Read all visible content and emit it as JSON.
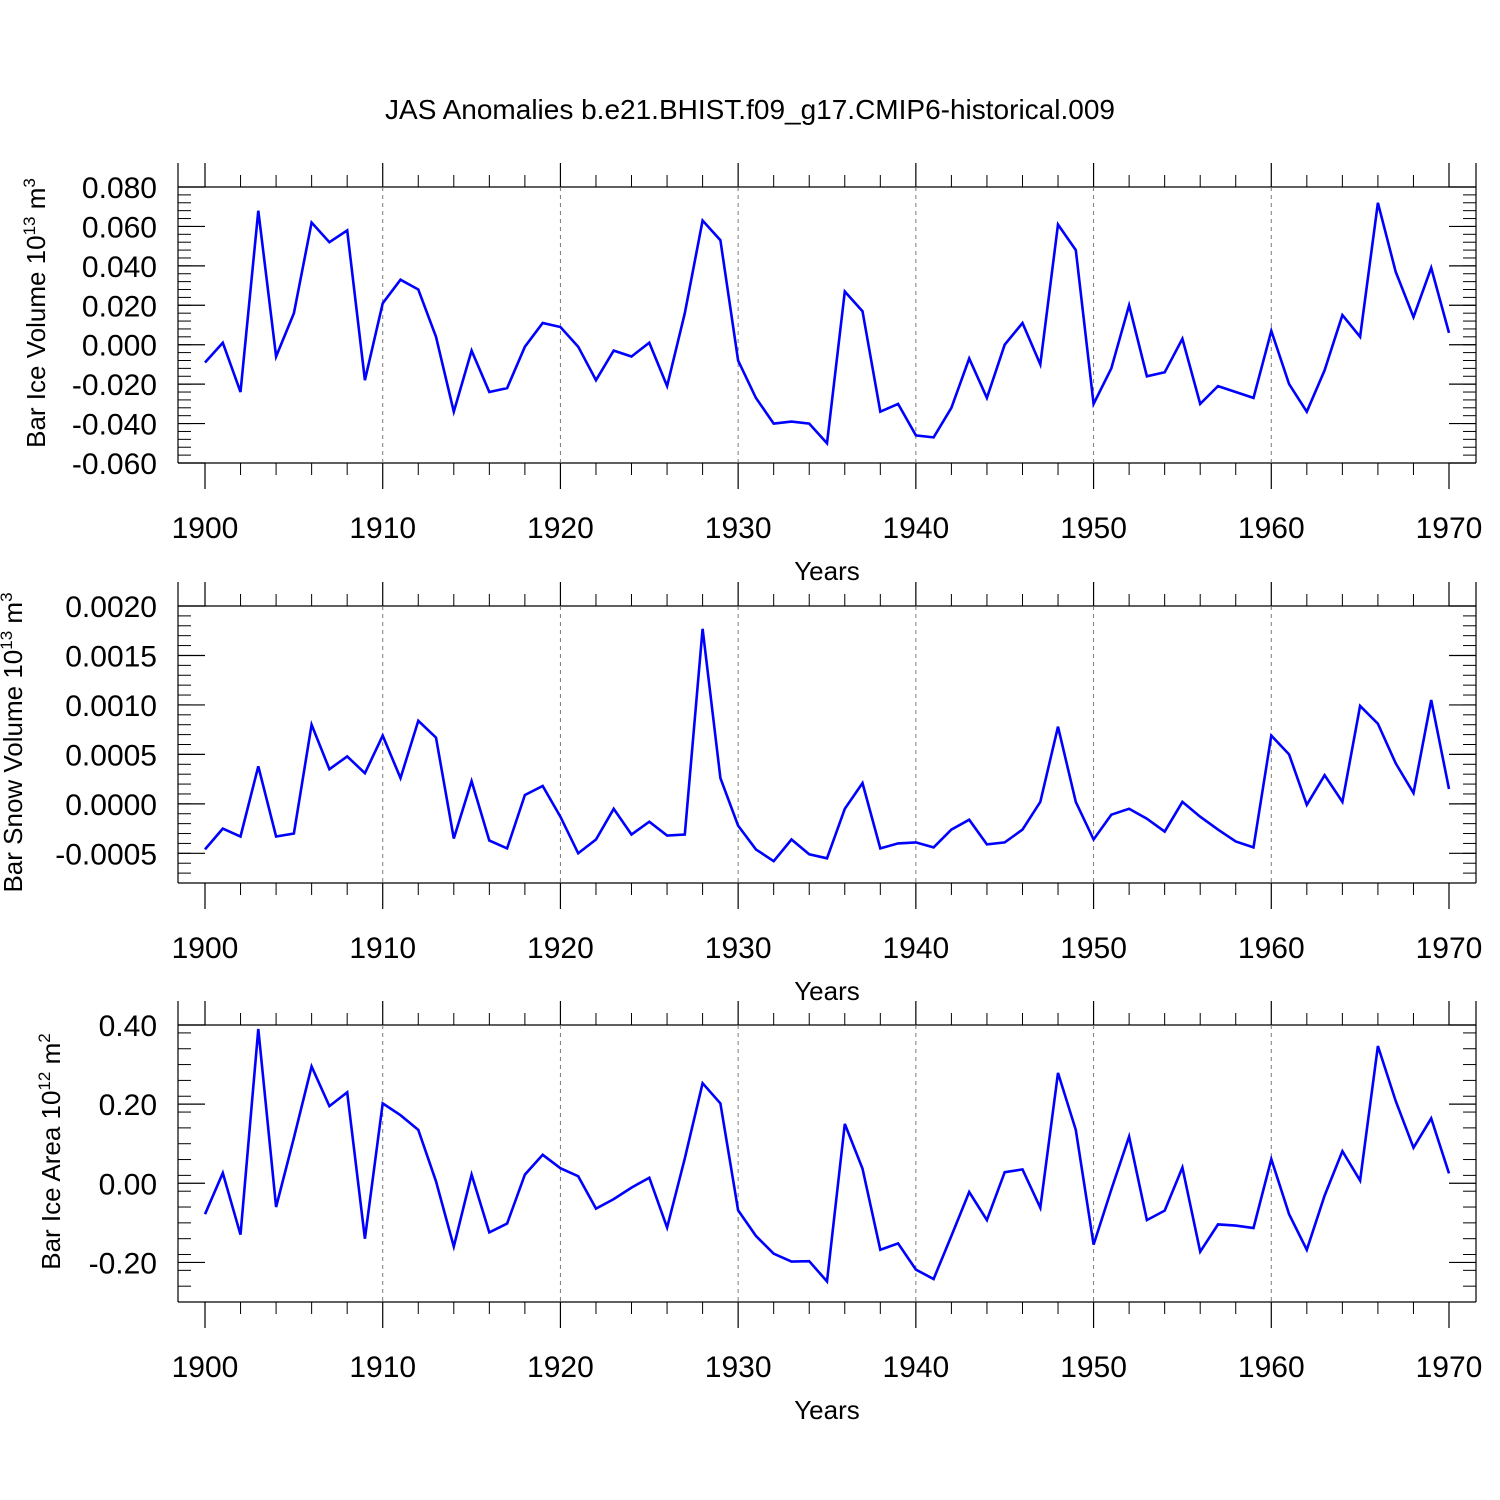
{
  "title": "JAS Anomalies b.e21.BHIST.f09_g17.CMIP6-historical.009",
  "colors": {
    "line": "#0000ff",
    "axis": "#000000",
    "grid": "#7a7a7a"
  },
  "chart_data": [
    {
      "type": "line",
      "xlabel": "Years",
      "ylabel": {
        "main": "Bar Ice Volume 10",
        "sup": "13",
        "unit": " m",
        "unit_sup": "3"
      },
      "xlim": [
        1900,
        1970
      ],
      "ylim": [
        -0.06,
        0.08
      ],
      "yticks": [
        -0.06,
        -0.04,
        -0.02,
        0.0,
        0.02,
        0.04,
        0.06,
        0.08
      ],
      "ytick_labels": [
        "-0.060",
        "-0.040",
        "-0.020",
        "0.000",
        "0.020",
        "0.040",
        "0.060",
        "0.080"
      ],
      "xticks": [
        1900,
        1910,
        1920,
        1930,
        1940,
        1950,
        1960,
        1970
      ],
      "xtick_labels": [
        "1900",
        "1910",
        "1920",
        "1930",
        "1940",
        "1950",
        "1960",
        "1970"
      ],
      "grid": "vertical dashed",
      "x": [
        1900,
        1901,
        1902,
        1903,
        1904,
        1905,
        1906,
        1907,
        1908,
        1909,
        1910,
        1911,
        1912,
        1913,
        1914,
        1915,
        1916,
        1917,
        1918,
        1919,
        1920,
        1921,
        1922,
        1923,
        1924,
        1925,
        1926,
        1927,
        1928,
        1929,
        1930,
        1931,
        1932,
        1933,
        1934,
        1935,
        1936,
        1937,
        1938,
        1939,
        1940,
        1941,
        1942,
        1943,
        1944,
        1945,
        1946,
        1947,
        1948,
        1949,
        1950,
        1951,
        1952,
        1953,
        1954,
        1955,
        1956,
        1957,
        1958,
        1959,
        1960,
        1961,
        1962,
        1963,
        1964,
        1965,
        1966,
        1967,
        1968,
        1969,
        1970
      ],
      "y": [
        -0.009,
        0.001,
        -0.024,
        0.068,
        -0.006,
        0.016,
        0.062,
        0.052,
        0.058,
        -0.018,
        0.021,
        0.033,
        0.028,
        0.004,
        -0.034,
        -0.003,
        -0.024,
        -0.022,
        -0.001,
        0.011,
        0.009,
        -0.001,
        -0.018,
        -0.003,
        -0.006,
        0.001,
        -0.021,
        0.016,
        0.063,
        0.053,
        -0.008,
        -0.027,
        -0.04,
        -0.039,
        -0.04,
        -0.05,
        0.027,
        0.017,
        -0.034,
        -0.03,
        -0.046,
        -0.047,
        -0.032,
        -0.007,
        -0.027,
        0.0,
        0.011,
        -0.01,
        0.061,
        0.048,
        -0.03,
        -0.012,
        0.02,
        -0.016,
        -0.014,
        0.003,
        -0.03,
        -0.021,
        -0.024,
        -0.027,
        0.007,
        -0.02,
        -0.034,
        -0.013,
        0.015,
        0.004,
        0.072,
        0.037,
        0.014,
        0.039,
        0.006
      ]
    },
    {
      "type": "line",
      "xlabel": "Years",
      "ylabel": {
        "main": "Bar Snow Volume 10",
        "sup": "13",
        "unit": " m",
        "unit_sup": "3"
      },
      "xlim": [
        1900,
        1970
      ],
      "ylim": [
        -0.0008,
        0.002
      ],
      "yticks": [
        -0.0005,
        0.0,
        0.0005,
        0.001,
        0.0015,
        0.002
      ],
      "ytick_labels": [
        "-0.0005",
        "0.0000",
        "0.0005",
        "0.0010",
        "0.0015",
        "0.0020"
      ],
      "xticks": [
        1900,
        1910,
        1920,
        1930,
        1940,
        1950,
        1960,
        1970
      ],
      "xtick_labels": [
        "1900",
        "1910",
        "1920",
        "1930",
        "1940",
        "1950",
        "1960",
        "1970"
      ],
      "grid": "vertical dashed",
      "x": [
        1900,
        1901,
        1902,
        1903,
        1904,
        1905,
        1906,
        1907,
        1908,
        1909,
        1910,
        1911,
        1912,
        1913,
        1914,
        1915,
        1916,
        1917,
        1918,
        1919,
        1920,
        1921,
        1922,
        1923,
        1924,
        1925,
        1926,
        1927,
        1928,
        1929,
        1930,
        1931,
        1932,
        1933,
        1934,
        1935,
        1936,
        1937,
        1938,
        1939,
        1940,
        1941,
        1942,
        1943,
        1944,
        1945,
        1946,
        1947,
        1948,
        1949,
        1950,
        1951,
        1952,
        1953,
        1954,
        1955,
        1956,
        1957,
        1958,
        1959,
        1960,
        1961,
        1962,
        1963,
        1964,
        1965,
        1966,
        1967,
        1968,
        1969,
        1970
      ],
      "y": [
        -0.00046,
        -0.00025,
        -0.00033,
        0.00038,
        -0.00033,
        -0.0003,
        0.0008,
        0.00035,
        0.00048,
        0.00031,
        0.00069,
        0.00026,
        0.00084,
        0.00067,
        -0.00035,
        0.00023,
        -0.00037,
        -0.00045,
        9e-05,
        0.00018,
        -0.00013,
        -0.0005,
        -0.00036,
        -5e-05,
        -0.00031,
        -0.00018,
        -0.00032,
        -0.00031,
        0.00177,
        0.00026,
        -0.00022,
        -0.00046,
        -0.00058,
        -0.00036,
        -0.00051,
        -0.00055,
        -5e-05,
        0.00021,
        -0.00045,
        -0.0004,
        -0.00039,
        -0.00044,
        -0.00026,
        -0.00016,
        -0.00041,
        -0.00039,
        -0.00026,
        2e-05,
        0.00078,
        2e-05,
        -0.00036,
        -0.00011,
        -5e-05,
        -0.00015,
        -0.00028,
        2e-05,
        -0.00013,
        -0.00026,
        -0.00038,
        -0.00044,
        0.00069,
        0.0005,
        -1e-05,
        0.00029,
        2e-05,
        0.00099,
        0.00081,
        0.00041,
        0.00011,
        0.00105,
        0.00015
      ]
    },
    {
      "type": "line",
      "xlabel": "Years",
      "ylabel": {
        "main": "Bar Ice Area 10",
        "sup": "12",
        "unit": " m",
        "unit_sup": "2"
      },
      "xlim": [
        1900,
        1970
      ],
      "ylim": [
        -0.3,
        0.4
      ],
      "yticks": [
        -0.2,
        0.0,
        0.2,
        0.4
      ],
      "ytick_labels": [
        "-0.20",
        "0.00",
        "0.20",
        "0.40"
      ],
      "xticks": [
        1900,
        1910,
        1920,
        1930,
        1940,
        1950,
        1960,
        1970
      ],
      "xtick_labels": [
        "1900",
        "1910",
        "1920",
        "1930",
        "1940",
        "1950",
        "1960",
        "1970"
      ],
      "grid": "vertical dashed",
      "x": [
        1900,
        1901,
        1902,
        1903,
        1904,
        1905,
        1906,
        1907,
        1908,
        1909,
        1910,
        1911,
        1912,
        1913,
        1914,
        1915,
        1916,
        1917,
        1918,
        1919,
        1920,
        1921,
        1922,
        1923,
        1924,
        1925,
        1926,
        1927,
        1928,
        1929,
        1930,
        1931,
        1932,
        1933,
        1934,
        1935,
        1936,
        1937,
        1938,
        1939,
        1940,
        1941,
        1942,
        1943,
        1944,
        1945,
        1946,
        1947,
        1948,
        1949,
        1950,
        1951,
        1952,
        1953,
        1954,
        1955,
        1956,
        1957,
        1958,
        1959,
        1960,
        1961,
        1962,
        1963,
        1964,
        1965,
        1966,
        1967,
        1968,
        1969,
        1970
      ],
      "y": [
        -0.078,
        0.026,
        -0.13,
        0.39,
        -0.06,
        0.115,
        0.295,
        0.195,
        0.23,
        -0.14,
        0.202,
        0.172,
        0.135,
        0.005,
        -0.16,
        0.022,
        -0.124,
        -0.102,
        0.022,
        0.072,
        0.038,
        0.018,
        -0.064,
        -0.04,
        -0.011,
        0.014,
        -0.112,
        0.063,
        0.253,
        0.202,
        -0.068,
        -0.133,
        -0.178,
        -0.198,
        -0.197,
        -0.248,
        0.15,
        0.037,
        -0.168,
        -0.152,
        -0.218,
        -0.242,
        -0.133,
        -0.022,
        -0.093,
        0.028,
        0.035,
        -0.062,
        0.279,
        0.135,
        -0.155,
        -0.016,
        0.118,
        -0.093,
        -0.069,
        0.04,
        -0.173,
        -0.104,
        -0.107,
        -0.113,
        0.061,
        -0.078,
        -0.168,
        -0.031,
        0.081,
        0.007,
        0.347,
        0.208,
        0.09,
        0.164,
        0.025
      ]
    }
  ]
}
